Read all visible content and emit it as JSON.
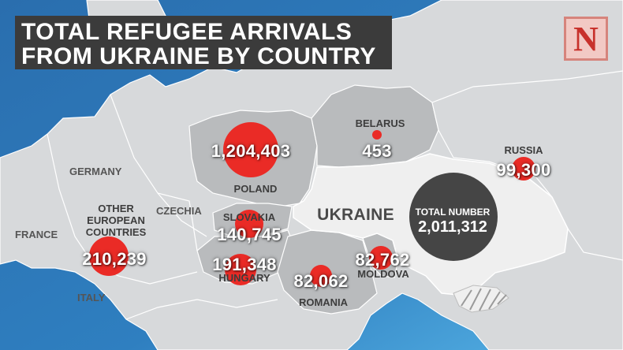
{
  "header": {
    "title_line1": "TOTAL REFUGEE ARRIVALS",
    "title_line2": "FROM UKRAINE BY COUNTRY"
  },
  "logo": {
    "letter": "N"
  },
  "countries": {
    "germany": "GERMANY",
    "france": "FRANCE",
    "czechia": "CZECHIA",
    "italy": "ITALY",
    "belarus": "BELARUS",
    "russia": "RUSSIA",
    "poland": "POLAND",
    "slovakia": "SLOVAKIA",
    "hungary": "HUNGARY",
    "romania": "ROMANIA",
    "moldova": "MOLDOVA",
    "ukraine": "UKRAINE",
    "other_european": "OTHER EUROPEAN COUNTRIES"
  },
  "arrivals": [
    {
      "key": "poland",
      "country": "POLAND",
      "value": 1204403,
      "label": "1,204,403"
    },
    {
      "key": "belarus",
      "country": "BELARUS",
      "value": 453,
      "label": "453"
    },
    {
      "key": "russia",
      "country": "RUSSIA",
      "value": 99300,
      "label": "99,300"
    },
    {
      "key": "slovakia",
      "country": "SLOVAKIA",
      "value": 140745,
      "label": "140,745"
    },
    {
      "key": "hungary",
      "country": "HUNGARY",
      "value": 191348,
      "label": "191,348"
    },
    {
      "key": "romania",
      "country": "ROMANIA",
      "value": 82062,
      "label": "82,062"
    },
    {
      "key": "moldova",
      "country": "MOLDOVA",
      "value": 82762,
      "label": "82,762"
    },
    {
      "key": "other",
      "country": "OTHER EUROPEAN COUNTRIES",
      "value": 210239,
      "label": "210,239"
    }
  ],
  "total": {
    "label_top": "TOTAL NUMBER",
    "value": 2011312,
    "label": "2,011,312"
  },
  "colors": {
    "sea": "#2d76b6",
    "land": "#d7d9db",
    "highlight_land": "#b9bbbd",
    "ukraine": "#efefef",
    "bubble": "#ea2b26",
    "total_bubble": "#454545",
    "title_bg": "#3b3b3b"
  }
}
